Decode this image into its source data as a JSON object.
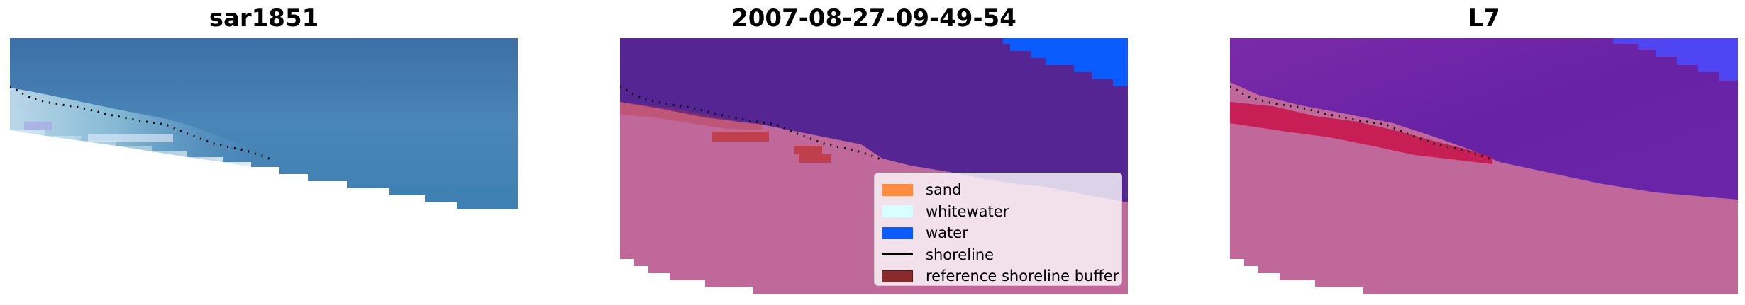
{
  "panels": [
    {
      "title": "sar1851",
      "kind": "rgb"
    },
    {
      "title": "2007-08-27-09-49-54",
      "kind": "classified"
    },
    {
      "title": "L7",
      "kind": "overlay"
    }
  ],
  "legend": {
    "items": [
      {
        "label": "sand",
        "color": "#ff8c42",
        "type": "patch"
      },
      {
        "label": "whitewater",
        "color": "#d8ffff",
        "type": "patch"
      },
      {
        "label": "water",
        "color": "#0a5cff",
        "type": "patch"
      },
      {
        "label": "shoreline",
        "color": "#000000",
        "type": "line"
      },
      {
        "label": "reference shoreline buffer",
        "color": "#8b2a2a",
        "type": "patch"
      }
    ]
  },
  "colors": {
    "ocean_rgb": "#3f7eb1",
    "water_class": "#542593",
    "water_class_bright": "#0a5cff",
    "land_mask": "#bf6899",
    "buffer": "#c0353a",
    "overlay_water": "#6a23a6",
    "overlay_buffer": "#c8124a",
    "shoreline": "#000000"
  }
}
